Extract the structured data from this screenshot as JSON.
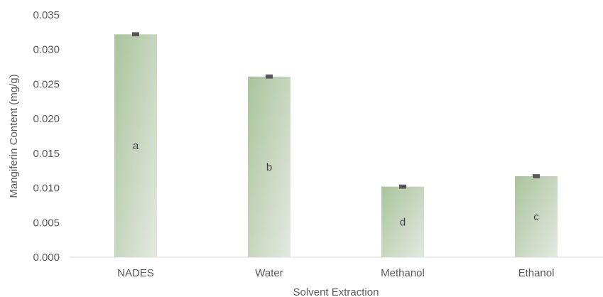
{
  "chart_data": {
    "type": "bar",
    "categories": [
      "NADES",
      "Water",
      "Methanol",
      "Ethanol"
    ],
    "values": [
      0.0322,
      0.0261,
      0.0102,
      0.0117
    ],
    "errors": [
      0.0003,
      0.0003,
      0.0003,
      0.0003
    ],
    "group_letters": [
      "a",
      "b",
      "d",
      "c"
    ],
    "title": "",
    "xlabel": "Solvent Extraction",
    "ylabel": "Mangiferin Content (mg/g)",
    "ylim": [
      0,
      0.035
    ],
    "yticks": [
      "0.000",
      "0.005",
      "0.010",
      "0.015",
      "0.020",
      "0.025",
      "0.030",
      "0.035"
    ],
    "grid": false,
    "legend": "none",
    "colors": {
      "bar_top": "#a9c49d",
      "bar_bottom": "#e4e9e0",
      "error_bar": "#595959",
      "axis": "#d9d9d9"
    }
  }
}
